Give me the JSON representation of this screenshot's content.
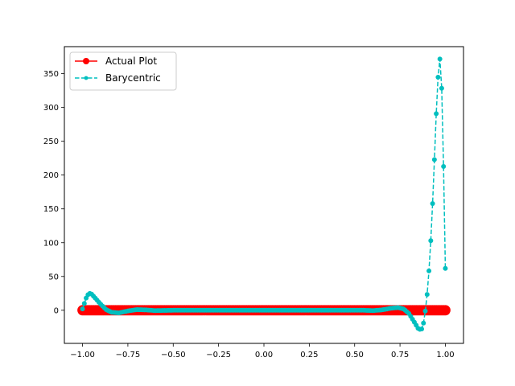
{
  "chart_data": {
    "type": "line",
    "title": "",
    "xlabel": "",
    "ylabel": "",
    "xlim": [
      -1.1,
      1.1
    ],
    "ylim": [
      -49,
      390
    ],
    "xticks": [
      -1.0,
      -0.75,
      -0.5,
      -0.25,
      0.0,
      0.25,
      0.5,
      0.75,
      1.0
    ],
    "xtick_labels": [
      "−1.00",
      "−0.75",
      "−0.50",
      "−0.25",
      "0.00",
      "0.25",
      "0.50",
      "0.75",
      "1.00"
    ],
    "yticks": [
      0,
      50,
      100,
      150,
      200,
      250,
      300,
      350
    ],
    "ytick_labels": [
      "0",
      "50",
      "100",
      "150",
      "200",
      "250",
      "300",
      "350"
    ],
    "grid": false,
    "legend_position": "upper-left",
    "series": [
      {
        "name": "Actual Plot",
        "color": "#ff0000",
        "marker": "circle",
        "linestyle": "solid",
        "sampling": {
          "x_start": -1.0,
          "x_end": 1.0,
          "count": 200
        },
        "curve": [
          [
            -1.0,
            0.0
          ],
          [
            1.0,
            0.0
          ]
        ]
      },
      {
        "name": "Barycentric",
        "color": "#00bfbf",
        "marker": "point",
        "linestyle": "dashed",
        "sampling": {
          "x_start": -1.0,
          "x_end": 1.0,
          "count": 200
        },
        "curve": [
          [
            -1.0,
            2
          ],
          [
            -0.99,
            10
          ],
          [
            -0.98,
            18
          ],
          [
            -0.97,
            23
          ],
          [
            -0.96,
            25
          ],
          [
            -0.95,
            24
          ],
          [
            -0.93,
            18
          ],
          [
            -0.9,
            9
          ],
          [
            -0.87,
            1
          ],
          [
            -0.84,
            -3
          ],
          [
            -0.8,
            -4
          ],
          [
            -0.75,
            -1
          ],
          [
            -0.7,
            1
          ],
          [
            -0.65,
            0.5
          ],
          [
            -0.6,
            -0.5
          ],
          [
            -0.5,
            0
          ],
          [
            0.55,
            0
          ],
          [
            0.6,
            -0.5
          ],
          [
            0.65,
            0.5
          ],
          [
            0.7,
            3
          ],
          [
            0.74,
            4
          ],
          [
            0.77,
            2
          ],
          [
            0.8,
            -5
          ],
          [
            0.83,
            -18
          ],
          [
            0.85,
            -27
          ],
          [
            0.865,
            -29
          ],
          [
            0.875,
            -26
          ],
          [
            0.885,
            -10
          ],
          [
            0.895,
            10
          ],
          [
            0.905,
            40
          ],
          [
            0.915,
            80
          ],
          [
            0.925,
            130
          ],
          [
            0.935,
            190
          ],
          [
            0.945,
            260
          ],
          [
            0.955,
            325
          ],
          [
            0.963,
            358
          ],
          [
            0.97,
            372
          ],
          [
            0.977,
            355
          ],
          [
            0.983,
            300
          ],
          [
            0.988,
            240
          ],
          [
            0.993,
            170
          ],
          [
            0.997,
            115
          ],
          [
            1.0,
            62
          ]
        ]
      }
    ]
  }
}
